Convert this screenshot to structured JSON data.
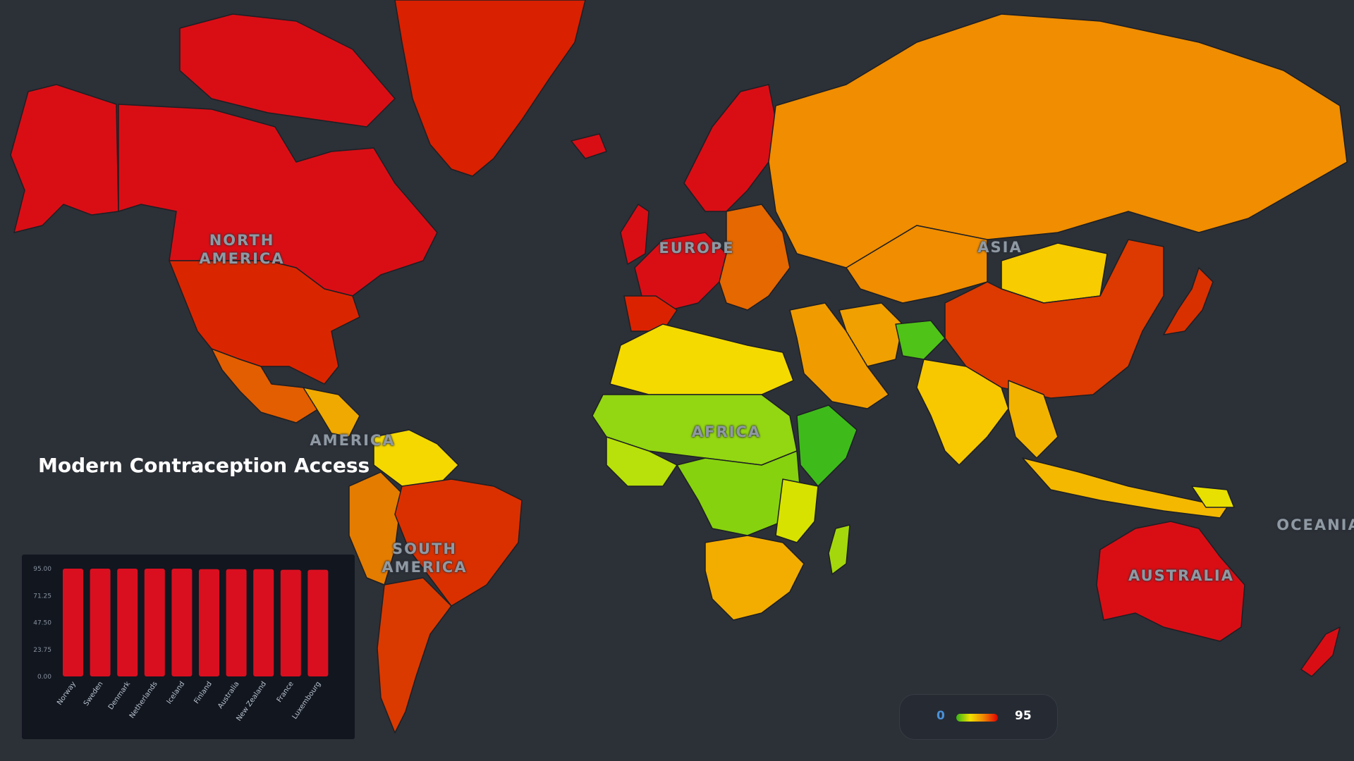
{
  "colors": {
    "background": "#2c3037",
    "scale_low": "#35b516",
    "scale_mid": "#f1e100",
    "scale_high": "#e00000",
    "bar": "#d90f20"
  },
  "map": {
    "continents": [
      "NORTH\nAMERICA",
      "EUROPE",
      "ASIA",
      "AMERICA",
      "AFRICA",
      "SOUTH\nAMERICA",
      "OCEANIA",
      "AUSTRALIA"
    ]
  },
  "title": "Modern Contraception Access",
  "legend": {
    "min": "0",
    "max": "95"
  },
  "chart_data": {
    "type": "bar",
    "categories": [
      "Norway",
      "Sweden",
      "Denmark",
      "Netherlands",
      "Iceland",
      "Finland",
      "Australia",
      "New Zealand",
      "France",
      "Luxembourg"
    ],
    "values": [
      95,
      95,
      95,
      95,
      95,
      94.5,
      94.5,
      94.5,
      94,
      94
    ],
    "ylim": [
      0,
      95
    ],
    "yticks": [
      "95.00",
      "71.25",
      "47.50",
      "23.75",
      "0.00"
    ],
    "grid": false
  }
}
